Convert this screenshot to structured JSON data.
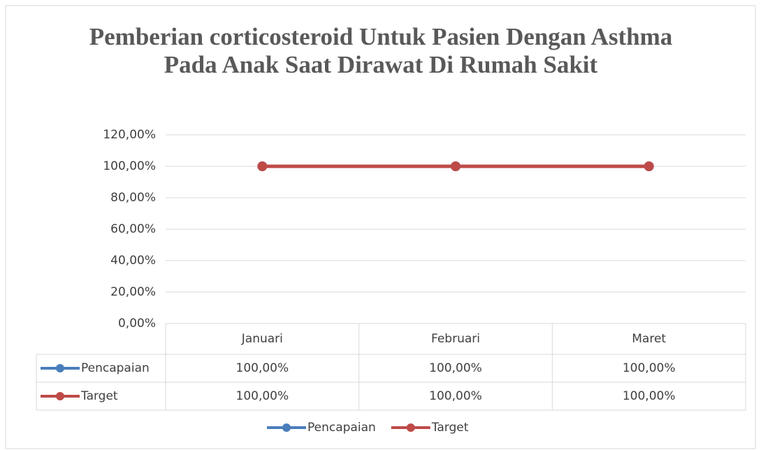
{
  "chart_data": {
    "type": "line",
    "title": "Pemberian corticosteroid Untuk Pasien Dengan Asthma Pada Anak Saat Dirawat Di Rumah Sakit",
    "categories": [
      "Januari",
      "Februari",
      "Maret"
    ],
    "series": [
      {
        "name": "Pencapaian",
        "color": "#4a7ebb",
        "values": [
          100,
          100,
          100
        ],
        "value_labels": [
          "100,00%",
          "100,00%",
          "100,00%"
        ]
      },
      {
        "name": "Target",
        "color": "#be4b48",
        "values": [
          100,
          100,
          100
        ],
        "value_labels": [
          "100,00%",
          "100,00%",
          "100,00%"
        ]
      }
    ],
    "ylim": [
      0,
      120
    ],
    "yticks": [
      {
        "value": 0,
        "label": "0,00%"
      },
      {
        "value": 20,
        "label": "20,00%"
      },
      {
        "value": 40,
        "label": "40,00%"
      },
      {
        "value": 60,
        "label": "60,00%"
      },
      {
        "value": 80,
        "label": "80,00%"
      },
      {
        "value": 100,
        "label": "100,00%"
      },
      {
        "value": 120,
        "label": "120,00%"
      }
    ],
    "grid": true,
    "legend": "bottom"
  }
}
